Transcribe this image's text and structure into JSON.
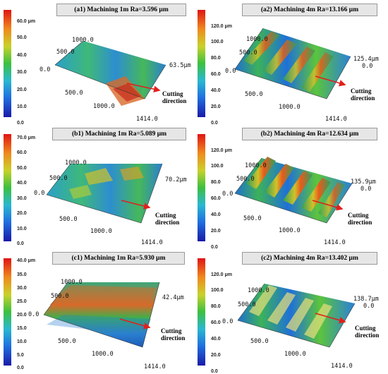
{
  "cutting_label_1": "Cutting",
  "cutting_label_2": "direction",
  "panels": [
    {
      "title": "(a1)  Machining 1m Ra=3.596 μm",
      "scale": [
        "60.0 μm",
        "50.0",
        "40.0",
        "30.0",
        "20.0",
        "10.0",
        "0.0"
      ],
      "ax_y": "1000.0",
      "ax_y2": "500.0",
      "ax_zero": "0.0",
      "ax_z": "63.5μm",
      "ax_x1": "500.0",
      "ax_x2": "1000.0",
      "ax_x3": "1414.0"
    },
    {
      "title": "(a2)  Machining 4m Ra=13.166 μm",
      "scale": [
        "120.0 μm",
        "100.0",
        "80.0",
        "60.0",
        "40.0",
        "20.0",
        "0.0"
      ],
      "ax_y": "1000.0",
      "ax_y2": "500.0",
      "ax_zero": "0.0",
      "ax_z": "125.4μm",
      "ax_z0": "0.0",
      "ax_x1": "500.0",
      "ax_x2": "1000.0",
      "ax_x3": "1414.0"
    },
    {
      "title": "(b1)  Machining 1m Ra=5.089 μm",
      "scale": [
        "70.0 μm",
        "60.0",
        "50.0",
        "40.0",
        "30.0",
        "20.0",
        "10.0",
        "0.0"
      ],
      "ax_y": "1000.0",
      "ax_y2": "500.0",
      "ax_zero": "0.0",
      "ax_z": "70.2μm",
      "ax_x1": "500.0",
      "ax_x2": "1000.0",
      "ax_x3": "1414.0"
    },
    {
      "title": "(b2)  Machining 4m Ra=12.634 μm",
      "scale": [
        "120.0 μm",
        "100.0",
        "80.0",
        "60.0",
        "40.0",
        "20.0",
        "0.0"
      ],
      "ax_y": "1000.0",
      "ax_y2": "500.0",
      "ax_zero": "0.0",
      "ax_z": "135.9μm",
      "ax_z0": "0.0",
      "ax_x1": "500.0",
      "ax_x2": "1000.0",
      "ax_x3": "1414.0"
    },
    {
      "title": "(c1)  Machining 1m Ra=5.930 μm",
      "scale": [
        "40.0 μm",
        "35.0",
        "30.0",
        "25.0",
        "20.0",
        "15.0",
        "10.0",
        "5.0",
        "0.0"
      ],
      "ax_y": "1000.0",
      "ax_y2": "500.0",
      "ax_zero": "0.0",
      "ax_z": "42.4μm",
      "ax_x1": "500.0",
      "ax_x2": "1000.0",
      "ax_x3": "1414.0"
    },
    {
      "title": "(c2)  Machining 4m Ra=13.402 μm",
      "scale": [
        "120.0 μm",
        "100.0",
        "80.0",
        "60.0",
        "40.0",
        "20.0",
        "0.0"
      ],
      "ax_y": "1000.0",
      "ax_y2": "500.0",
      "ax_zero": "0.0",
      "ax_z": "138.7μm",
      "ax_z0": "0.0",
      "ax_x1": "500.0",
      "ax_x2": "1000.0",
      "ax_x3": "1414.0"
    }
  ]
}
